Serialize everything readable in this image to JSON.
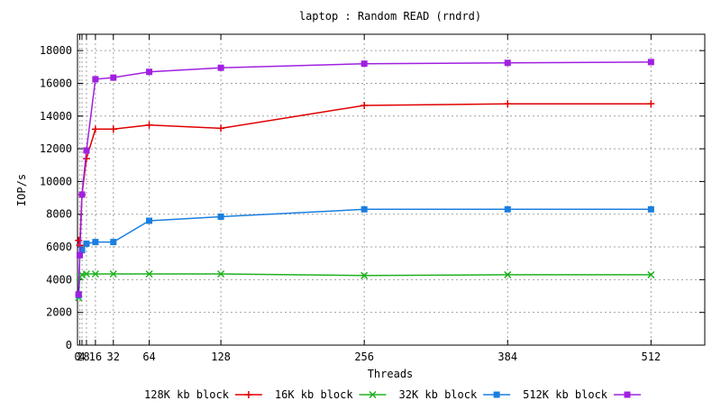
{
  "chart_data": {
    "type": "line",
    "title": "laptop : Random READ (rndrd)",
    "xlabel": "Threads",
    "ylabel": "IOP/s",
    "xlim": [
      0,
      560
    ],
    "ylim": [
      0,
      19000
    ],
    "x": [
      1,
      2,
      4,
      8,
      16,
      32,
      64,
      128,
      256,
      384,
      512
    ],
    "x_ticks": [
      {
        "value": 0,
        "label": "0"
      },
      {
        "value": 2,
        "label": "2"
      },
      {
        "value": 4,
        "label": "4"
      },
      {
        "value": 8,
        "label": "8"
      },
      {
        "value": 16,
        "label": "16"
      },
      {
        "value": 32,
        "label": "32"
      },
      {
        "value": 64,
        "label": "64"
      },
      {
        "value": 128,
        "label": "128"
      },
      {
        "value": 256,
        "label": "256"
      },
      {
        "value": 384,
        "label": "384"
      },
      {
        "value": 512,
        "label": "512"
      }
    ],
    "y_ticks": [
      0,
      2000,
      4000,
      6000,
      8000,
      10000,
      12000,
      14000,
      16000,
      18000
    ],
    "grid": true,
    "legend_position": "bottom",
    "series": [
      {
        "name": "128K kb block",
        "color": "#e00000",
        "marker": "plus",
        "values": [
          6400,
          6100,
          9200,
          11400,
          13200,
          13200,
          13450,
          13250,
          14650,
          14750,
          14750
        ]
      },
      {
        "name": "16K kb block",
        "color": "#20b020",
        "marker": "cross",
        "values": [
          2900,
          4150,
          4300,
          4350,
          4350,
          4350,
          4350,
          4350,
          4250,
          4300,
          4300
        ]
      },
      {
        "name": "32K kb block",
        "color": "#1a7fe0",
        "marker": "square",
        "values": [
          3050,
          5500,
          5800,
          6200,
          6300,
          6300,
          7600,
          7850,
          8300,
          8300,
          8300
        ]
      },
      {
        "name": "512K kb block",
        "color": "#a020e0",
        "marker": "square",
        "values": [
          3100,
          5500,
          9200,
          11900,
          16250,
          16350,
          16700,
          16950,
          17200,
          17250,
          17300
        ]
      }
    ]
  }
}
